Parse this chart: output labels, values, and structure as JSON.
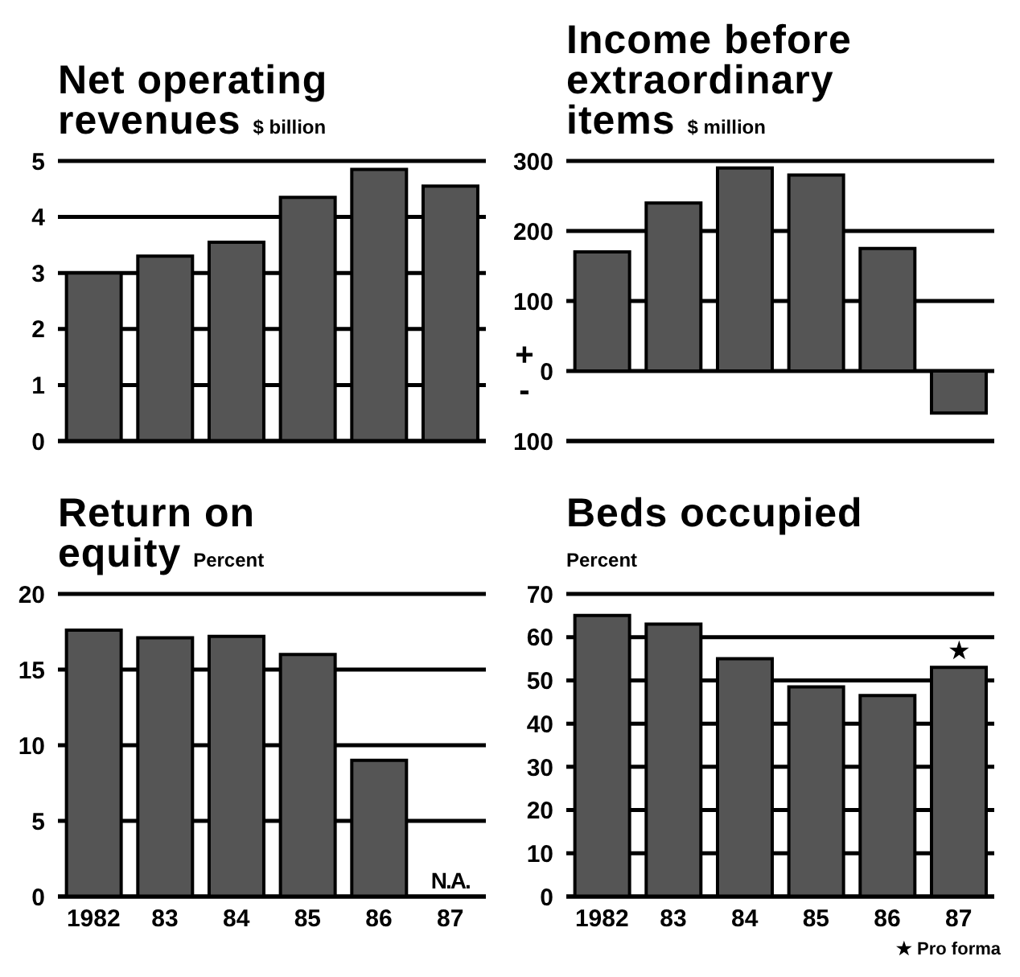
{
  "chart_data": [
    {
      "type": "bar",
      "title": "Net operating revenues",
      "ylabel": "$ billion",
      "categories": [
        "1982",
        "83",
        "84",
        "85",
        "86",
        "87"
      ],
      "values": [
        3.0,
        3.3,
        3.55,
        4.35,
        4.85,
        4.55
      ],
      "color": "#555555",
      "ylim": [
        0,
        5
      ],
      "yticks": [
        0,
        1,
        2,
        3,
        4,
        5
      ],
      "grid": "y",
      "tick_labels": "y"
    },
    {
      "type": "bar",
      "title": "Income before extraordinary items",
      "ylabel": "$ million",
      "categories": [
        "1982",
        "83",
        "84",
        "85",
        "86",
        "87"
      ],
      "values": [
        170,
        240,
        290,
        280,
        175,
        -60
      ],
      "color": "#555555",
      "ylim": [
        -100,
        300
      ],
      "yticks": [
        {
          "value": -100,
          "label": "100"
        },
        0,
        100,
        200,
        300
      ],
      "grid": "y",
      "tick_labels": "y",
      "annotations": [
        "+",
        "-"
      ]
    },
    {
      "type": "bar",
      "title": "Return on equity",
      "ylabel": "Percent",
      "categories": [
        "1982",
        "83",
        "84",
        "85",
        "86",
        "87"
      ],
      "values": [
        17.6,
        17.1,
        17.2,
        16.0,
        9.0,
        null
      ],
      "value_labels": [
        null,
        null,
        null,
        null,
        null,
        "N.A."
      ],
      "color": "#555555",
      "ylim": [
        0,
        20
      ],
      "yticks": [
        0,
        5,
        10,
        15,
        20
      ],
      "grid": "y"
    },
    {
      "type": "bar",
      "title": "Beds occupied",
      "ylabel": "Percent",
      "categories": [
        "1982",
        "83",
        "84",
        "85",
        "86",
        "87"
      ],
      "values": [
        65,
        63,
        55,
        48.5,
        46.5,
        53
      ],
      "color": "#555555",
      "ylim": [
        0,
        70
      ],
      "yticks": [
        0,
        10,
        20,
        30,
        40,
        50,
        60,
        70
      ],
      "grid": "y",
      "annotations": [
        {
          "text": "★",
          "x": "87",
          "y": 53
        },
        "★ Pro forma"
      ]
    }
  ]
}
